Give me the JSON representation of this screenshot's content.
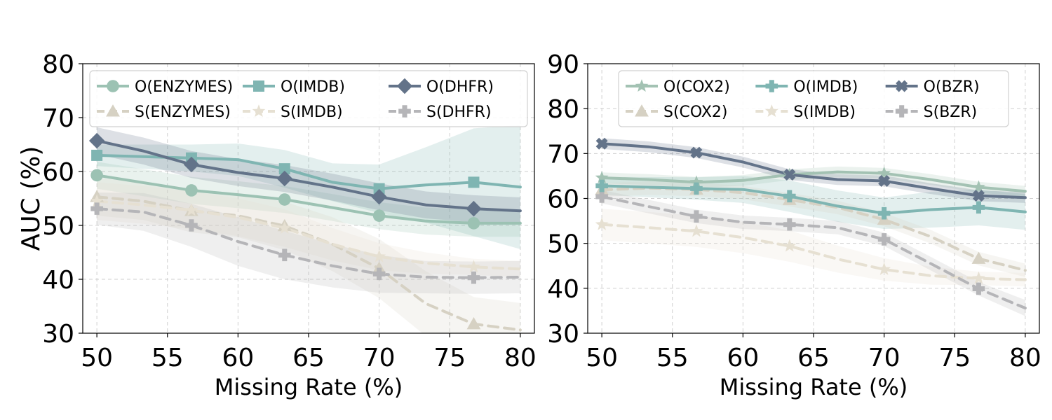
{
  "chart_data": [
    {
      "type": "line",
      "ylabel": "AUC (%)",
      "xlabel": "Missing Rate (%)",
      "xlim": [
        49,
        81
      ],
      "ylim": [
        30,
        80
      ],
      "xticks": [
        "50",
        "55",
        "60",
        "65",
        "70",
        "75",
        "80"
      ],
      "yticks": [
        "30",
        "40",
        "50",
        "60",
        "70",
        "80"
      ],
      "grid": true,
      "legend_position": "top",
      "legend_columns": 3,
      "series": [
        {
          "name": "O(ENZYMES)",
          "color": "#9cc2b3",
          "style": "solid",
          "marker": "circle",
          "x": [
            50,
            56.7,
            60,
            63.3,
            66.7,
            70,
            73.3,
            76.7,
            80
          ],
          "y": [
            59.3,
            56.5,
            55.7,
            54.8,
            53.3,
            51.8,
            50.8,
            50.4,
            50.4
          ],
          "band": [
            2.5,
            2.5,
            2.5,
            2.5,
            2.5,
            2.5,
            2.5,
            2.5,
            2.5
          ],
          "markers_at": [
            50,
            56.7,
            63.3,
            70,
            76.7
          ]
        },
        {
          "name": "O(IMDB)",
          "color": "#7fb5b2",
          "style": "solid",
          "marker": "square",
          "x": [
            50,
            56.7,
            60,
            63.3,
            66.7,
            70,
            73.3,
            76.7,
            80
          ],
          "y": [
            63.0,
            62.5,
            62.2,
            60.5,
            58.0,
            56.8,
            57.5,
            58.0,
            57.1
          ],
          "band": [
            2,
            2.5,
            3,
            3.5,
            3.5,
            4.5,
            7,
            10,
            11.5
          ],
          "markers_at": [
            50,
            56.7,
            63.3,
            70,
            76.7
          ]
        },
        {
          "name": "O(DHFR)",
          "color": "#637389",
          "style": "solid",
          "marker": "diamond",
          "x": [
            50,
            53.3,
            56.7,
            60,
            63.3,
            66.7,
            70,
            73.3,
            76.7,
            80
          ],
          "y": [
            65.7,
            63.8,
            61.3,
            59.8,
            58.7,
            57.1,
            55.3,
            53.8,
            53.1,
            52.7
          ],
          "band": [
            2.5,
            2.5,
            2.5,
            2.5,
            2.5,
            2.5,
            2.5,
            2.5,
            2.5,
            2.5
          ],
          "markers_at": [
            50,
            56.7,
            63.3,
            70,
            76.7
          ]
        },
        {
          "name": "S(ENZYMES)",
          "color": "#d6d1c3",
          "style": "dashed",
          "marker": "triangle",
          "x": [
            50,
            53.3,
            56.7,
            60,
            63.3,
            66.7,
            70,
            73.3,
            76.7,
            80
          ],
          "y": [
            55.3,
            54.5,
            52.7,
            51.8,
            49.9,
            46.5,
            42.0,
            35.5,
            31.7,
            30.6
          ],
          "band": [
            3.5,
            3.5,
            4,
            4,
            4.5,
            5,
            5.5,
            6,
            5,
            5
          ],
          "markers_at": [
            50,
            56.7,
            63.3,
            70,
            76.7
          ]
        },
        {
          "name": "S(IMDB)",
          "color": "#e6e0d2",
          "style": "dashed",
          "marker": "star",
          "x": [
            50,
            53.3,
            56.7,
            60,
            63.3,
            66.7,
            70,
            73.3,
            76.7,
            80
          ],
          "y": [
            54.5,
            53.8,
            52.8,
            51.5,
            49.5,
            46.5,
            44.2,
            43.0,
            42.3,
            41.9
          ],
          "band": [
            3.5,
            3.5,
            3.5,
            3.5,
            3.5,
            3,
            2.5,
            2,
            1.5,
            1.5
          ],
          "markers_at": [
            50,
            56.7,
            63.3,
            70,
            76.7
          ]
        },
        {
          "name": "S(DHFR)",
          "color": "#b5b5b8",
          "style": "dashed",
          "marker": "plus",
          "x": [
            50,
            53.3,
            56.7,
            60,
            63.3,
            66.7,
            70,
            73.3,
            76.7,
            80
          ],
          "y": [
            53.1,
            52.5,
            50.0,
            47.0,
            44.5,
            42.5,
            41.0,
            40.4,
            40.3,
            40.4
          ],
          "band": [
            3,
            3.5,
            4,
            4.5,
            4.5,
            4,
            3.5,
            3,
            3,
            3
          ],
          "markers_at": [
            50,
            56.7,
            63.3,
            70,
            76.7
          ]
        }
      ]
    },
    {
      "type": "line",
      "ylabel": "",
      "xlabel": "Missing Rate (%)",
      "xlim": [
        49,
        81
      ],
      "ylim": [
        30,
        90
      ],
      "xticks": [
        "50",
        "55",
        "60",
        "65",
        "70",
        "75",
        "80"
      ],
      "yticks": [
        "30",
        "40",
        "50",
        "60",
        "70",
        "80",
        "90"
      ],
      "grid": true,
      "legend_position": "top",
      "legend_columns": 3,
      "series": [
        {
          "name": "O(COX2)",
          "color": "#a3c2b3",
          "style": "solid",
          "marker": "star",
          "x": [
            50,
            53.3,
            56.7,
            60,
            63.3,
            66.7,
            70,
            73.3,
            76.7,
            80
          ],
          "y": [
            64.6,
            64.2,
            63.6,
            64.0,
            65.3,
            65.9,
            65.6,
            64.2,
            62.5,
            61.6
          ],
          "band": [
            1.2,
            1.2,
            1.2,
            1.2,
            1.2,
            1.2,
            1.2,
            1.2,
            1.2,
            1.2
          ],
          "markers_at": [
            50,
            56.7,
            63.3,
            70,
            76.7
          ]
        },
        {
          "name": "O(IMDB)",
          "color": "#7fb5b2",
          "style": "solid",
          "marker": "plus",
          "x": [
            50,
            56.7,
            60,
            63.3,
            66.7,
            70,
            73.3,
            76.7,
            80
          ],
          "y": [
            62.8,
            62.2,
            62.0,
            60.5,
            58.3,
            56.7,
            57.5,
            58.0,
            57.0
          ],
          "band": [
            2,
            2.5,
            3,
            3.5,
            3.5,
            3.5,
            4,
            4,
            4
          ],
          "markers_at": [
            50,
            56.7,
            63.3,
            70,
            76.7
          ]
        },
        {
          "name": "O(BZR)",
          "color": "#637389",
          "style": "solid",
          "marker": "x",
          "x": [
            50,
            53.3,
            56.7,
            60,
            63.3,
            66.7,
            70,
            73.3,
            76.7,
            80
          ],
          "y": [
            72.2,
            71.5,
            70.2,
            68.1,
            65.3,
            64.2,
            63.9,
            62.2,
            60.6,
            60.2
          ],
          "band": [
            1.2,
            1.2,
            1.2,
            1.2,
            1.2,
            1.2,
            1.2,
            1.2,
            1.2,
            1.2
          ],
          "markers_at": [
            50,
            56.7,
            63.3,
            70,
            76.7
          ]
        },
        {
          "name": "S(COX2)",
          "color": "#d6d1c3",
          "style": "dashed",
          "marker": "triangle",
          "x": [
            50,
            53.3,
            56.7,
            60,
            63.3,
            66.7,
            70,
            73.3,
            76.7,
            80
          ],
          "y": [
            61.9,
            62.3,
            62.0,
            61.3,
            59.7,
            58.0,
            55.3,
            51.5,
            46.6,
            44.0
          ],
          "band": [
            1.5,
            1.5,
            1.5,
            1.5,
            1.5,
            1.5,
            1.5,
            1.5,
            1.5,
            1.5
          ],
          "markers_at": [
            50,
            56.7,
            63.3,
            70,
            76.7
          ]
        },
        {
          "name": "S(IMDB)",
          "color": "#e6e0d2",
          "style": "dashed",
          "marker": "star",
          "x": [
            50,
            53.3,
            56.7,
            60,
            63.3,
            66.7,
            70,
            73.3,
            76.7,
            80
          ],
          "y": [
            54.2,
            53.5,
            52.7,
            51.3,
            49.4,
            46.5,
            44.2,
            42.8,
            42.2,
            41.9
          ],
          "band": [
            3.5,
            3.5,
            3.5,
            3.5,
            3.5,
            3,
            2.5,
            2,
            1.5,
            1.5
          ],
          "markers_at": [
            50,
            56.7,
            63.3,
            70,
            76.7
          ]
        },
        {
          "name": "S(BZR)",
          "color": "#b5b5b8",
          "style": "dashed",
          "marker": "plus",
          "x": [
            50,
            53.3,
            56.7,
            60,
            63.3,
            66.7,
            70,
            73.3,
            76.7,
            80
          ],
          "y": [
            60.4,
            58.2,
            56.0,
            54.7,
            54.2,
            53.5,
            50.9,
            45.5,
            39.9,
            35.6
          ],
          "band": [
            1.5,
            1.5,
            1.5,
            1.5,
            1.5,
            1.5,
            1.5,
            1.5,
            1.5,
            1.8
          ],
          "markers_at": [
            50,
            56.7,
            63.3,
            70,
            76.7
          ]
        }
      ]
    }
  ]
}
